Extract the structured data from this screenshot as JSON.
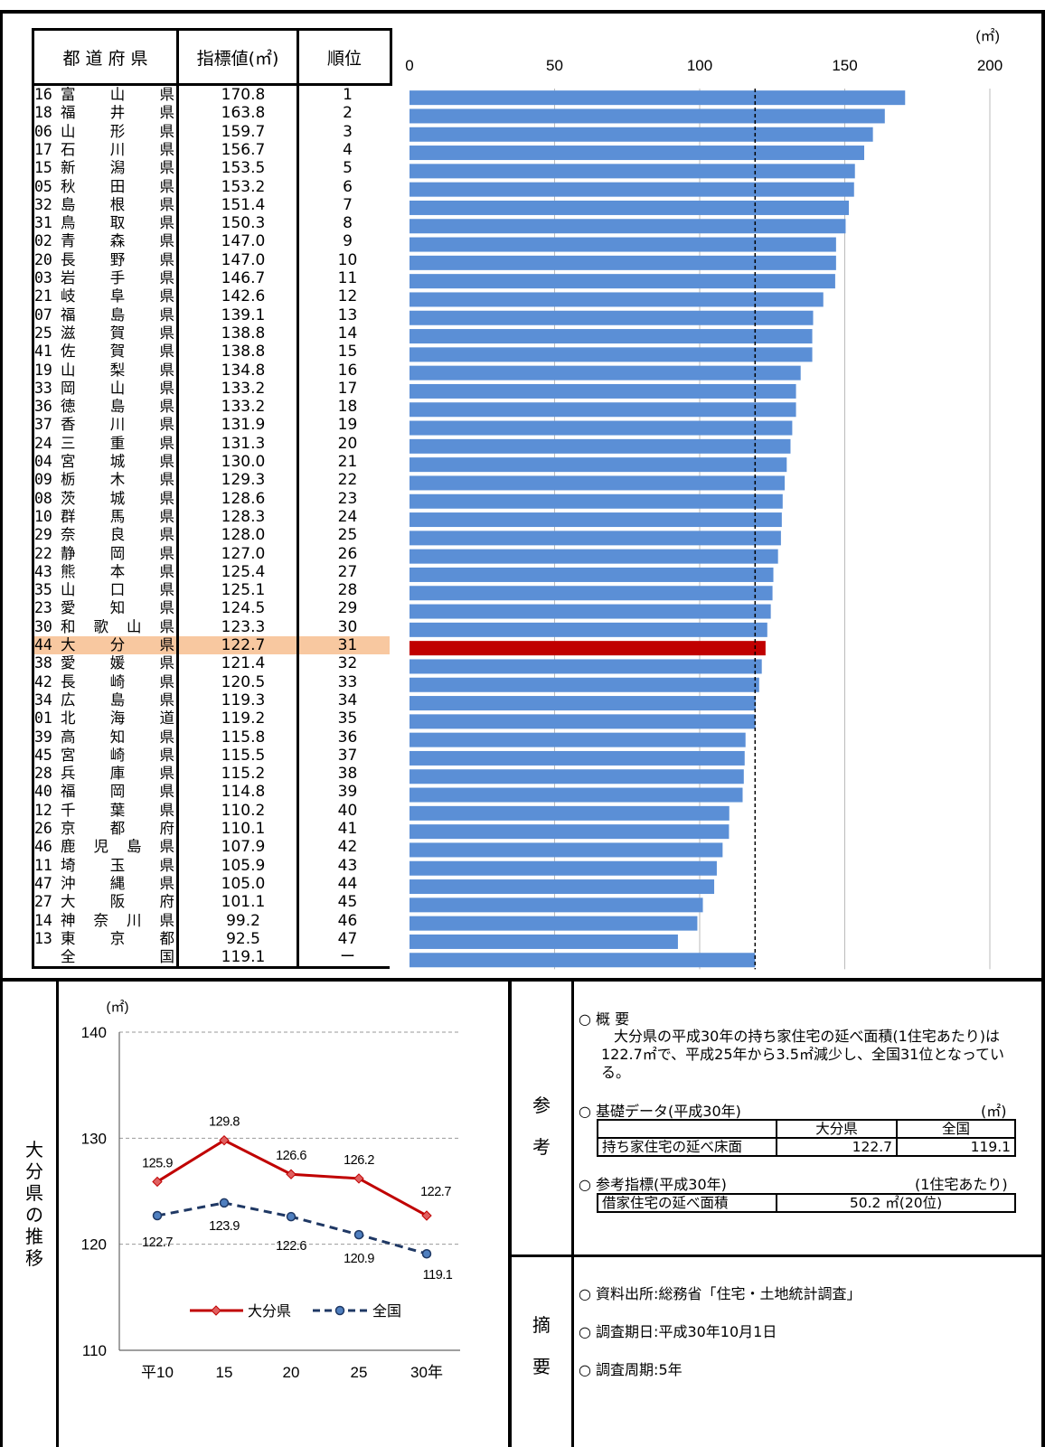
{
  "header": {
    "pref_label": "都 道 府 県",
    "value_label": "指標値(㎡)",
    "rank_label": "順位"
  },
  "rows": [
    {
      "code": "16",
      "pref": "富山県",
      "value": "170.8",
      "rank": "1"
    },
    {
      "code": "18",
      "pref": "福井県",
      "value": "163.8",
      "rank": "2"
    },
    {
      "code": "06",
      "pref": "山形県",
      "value": "159.7",
      "rank": "3"
    },
    {
      "code": "17",
      "pref": "石川県",
      "value": "156.7",
      "rank": "4"
    },
    {
      "code": "15",
      "pref": "新潟県",
      "value": "153.5",
      "rank": "5"
    },
    {
      "code": "05",
      "pref": "秋田県",
      "value": "153.2",
      "rank": "6"
    },
    {
      "code": "32",
      "pref": "島根県",
      "value": "151.4",
      "rank": "7"
    },
    {
      "code": "31",
      "pref": "鳥取県",
      "value": "150.3",
      "rank": "8"
    },
    {
      "code": "02",
      "pref": "青森県",
      "value": "147.0",
      "rank": "9"
    },
    {
      "code": "20",
      "pref": "長野県",
      "value": "147.0",
      "rank": "10"
    },
    {
      "code": "03",
      "pref": "岩手県",
      "value": "146.7",
      "rank": "11"
    },
    {
      "code": "21",
      "pref": "岐阜県",
      "value": "142.6",
      "rank": "12"
    },
    {
      "code": "07",
      "pref": "福島県",
      "value": "139.1",
      "rank": "13"
    },
    {
      "code": "25",
      "pref": "滋賀県",
      "value": "138.8",
      "rank": "14"
    },
    {
      "code": "41",
      "pref": "佐賀県",
      "value": "138.8",
      "rank": "15"
    },
    {
      "code": "19",
      "pref": "山梨県",
      "value": "134.8",
      "rank": "16"
    },
    {
      "code": "33",
      "pref": "岡山県",
      "value": "133.2",
      "rank": "17"
    },
    {
      "code": "36",
      "pref": "徳島県",
      "value": "133.2",
      "rank": "18"
    },
    {
      "code": "37",
      "pref": "香川県",
      "value": "131.9",
      "rank": "19"
    },
    {
      "code": "24",
      "pref": "三重県",
      "value": "131.3",
      "rank": "20"
    },
    {
      "code": "04",
      "pref": "宮城県",
      "value": "130.0",
      "rank": "21"
    },
    {
      "code": "09",
      "pref": "栃木県",
      "value": "129.3",
      "rank": "22"
    },
    {
      "code": "08",
      "pref": "茨城県",
      "value": "128.6",
      "rank": "23"
    },
    {
      "code": "10",
      "pref": "群馬県",
      "value": "128.3",
      "rank": "24"
    },
    {
      "code": "29",
      "pref": "奈良県",
      "value": "128.0",
      "rank": "25"
    },
    {
      "code": "22",
      "pref": "静岡県",
      "value": "127.0",
      "rank": "26"
    },
    {
      "code": "43",
      "pref": "熊本県",
      "value": "125.4",
      "rank": "27"
    },
    {
      "code": "35",
      "pref": "山口県",
      "value": "125.1",
      "rank": "28"
    },
    {
      "code": "23",
      "pref": "愛知県",
      "value": "124.5",
      "rank": "29"
    },
    {
      "code": "30",
      "pref": "和歌山県",
      "value": "123.3",
      "rank": "30"
    },
    {
      "code": "44",
      "pref": "大分県",
      "value": "122.7",
      "rank": "31",
      "highlight": true
    },
    {
      "code": "38",
      "pref": "愛媛県",
      "value": "121.4",
      "rank": "32"
    },
    {
      "code": "42",
      "pref": "長崎県",
      "value": "120.5",
      "rank": "33"
    },
    {
      "code": "34",
      "pref": "広島県",
      "value": "119.3",
      "rank": "34"
    },
    {
      "code": "01",
      "pref": "北海道",
      "value": "119.2",
      "rank": "35"
    },
    {
      "code": "39",
      "pref": "高知県",
      "value": "115.8",
      "rank": "36"
    },
    {
      "code": "45",
      "pref": "宮崎県",
      "value": "115.5",
      "rank": "37"
    },
    {
      "code": "28",
      "pref": "兵庫県",
      "value": "115.2",
      "rank": "38"
    },
    {
      "code": "40",
      "pref": "福岡県",
      "value": "114.8",
      "rank": "39"
    },
    {
      "code": "12",
      "pref": "千葉県",
      "value": "110.2",
      "rank": "40"
    },
    {
      "code": "26",
      "pref": "京都府",
      "value": "110.1",
      "rank": "41"
    },
    {
      "code": "46",
      "pref": "鹿児島県",
      "value": "107.9",
      "rank": "42"
    },
    {
      "code": "11",
      "pref": "埼玉県",
      "value": "105.9",
      "rank": "43"
    },
    {
      "code": "47",
      "pref": "沖縄県",
      "value": "105.0",
      "rank": "44"
    },
    {
      "code": "27",
      "pref": "大阪府",
      "value": "101.1",
      "rank": "45"
    },
    {
      "code": "14",
      "pref": "神奈川県",
      "value": "99.2",
      "rank": "46"
    },
    {
      "code": "13",
      "pref": "東京都",
      "value": "92.5",
      "rank": "47"
    },
    {
      "code": "",
      "pref": "全国",
      "value": "119.1",
      "rank": "ー"
    }
  ],
  "chart_data": [
    {
      "type": "bar",
      "orientation": "horizontal",
      "unit": "(㎡)",
      "xlim": [
        0,
        200
      ],
      "xticks": [
        "0",
        "50",
        "100",
        "150",
        "200"
      ],
      "reference_line": 119.1,
      "highlight_index": 30,
      "colors": {
        "bar": "#5b8fd6",
        "highlight": "#c00000"
      },
      "values": [
        170.8,
        163.8,
        159.7,
        156.7,
        153.5,
        153.2,
        151.4,
        150.3,
        147.0,
        147.0,
        146.7,
        142.6,
        139.1,
        138.8,
        138.8,
        134.8,
        133.2,
        133.2,
        131.9,
        131.3,
        130.0,
        129.3,
        128.6,
        128.3,
        128.0,
        127.0,
        125.4,
        125.1,
        124.5,
        123.3,
        122.7,
        121.4,
        120.5,
        119.3,
        119.2,
        115.8,
        115.5,
        115.2,
        114.8,
        110.2,
        110.1,
        107.9,
        105.9,
        105.0,
        101.1,
        99.2,
        92.5,
        119.1
      ]
    },
    {
      "type": "line",
      "unit": "(㎡)",
      "categories": [
        "平10",
        "15",
        "20",
        "25",
        "30年"
      ],
      "ylim": [
        110,
        140
      ],
      "yticks": [
        "110",
        "120",
        "130",
        "140"
      ],
      "grid": true,
      "legend_position": "bottom",
      "series": [
        {
          "name": "大分県",
          "values": [
            125.9,
            129.8,
            126.6,
            126.2,
            122.7
          ],
          "labels": [
            "125.9",
            "129.8",
            "126.6",
            "126.2",
            "122.7"
          ],
          "color": "#c00000",
          "style": "solid"
        },
        {
          "name": "全国",
          "values": [
            122.7,
            123.9,
            122.6,
            120.9,
            119.1
          ],
          "labels": [
            "122.7",
            "123.9",
            "122.6",
            "120.9",
            "119.1"
          ],
          "color": "#1f3864",
          "style": "dashed"
        }
      ]
    }
  ],
  "trend_label": "大分県の推移",
  "sankou_label": "参考",
  "tekiyou_label": "摘要",
  "notes": {
    "gaiyou_title": "○ 概 要",
    "gaiyou_text": "大分県の平成30年の持ち家住宅の延べ面積(1住宅あたり)は122.7㎡で、平成25年から3.5㎡減少し、全国31位となっている。",
    "kiso_title": "○ 基礎データ(平成30年)",
    "kiso_unit": "(㎡)",
    "kiso_col1": "大分県",
    "kiso_col2": "全国",
    "kiso_row_label": "持ち家住宅の延べ床面",
    "kiso_val1": "122.7",
    "kiso_val2": "119.1",
    "sankou_title": "○ 参考指標(平成30年)",
    "sankou_unit": "(1住宅あたり)",
    "sankou_row_label": "借家住宅の延べ面積",
    "sankou_val": "50.2 ㎡(20位)",
    "source": "○ 資料出所:総務省「住宅・土地統計調査」",
    "date": "○ 調査期日:平成30年10月1日",
    "cycle": "○ 調査周期:5年"
  }
}
